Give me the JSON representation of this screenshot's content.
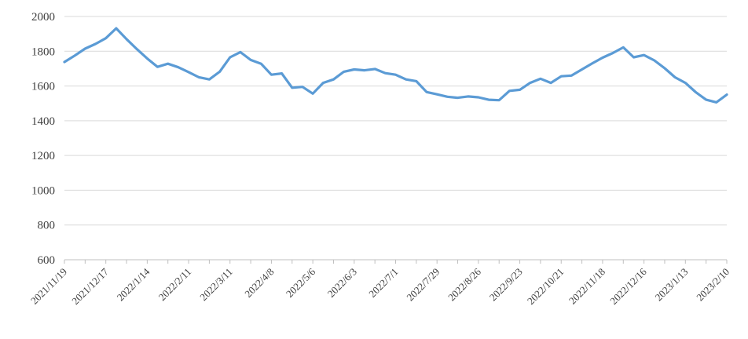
{
  "chart_data": {
    "type": "line",
    "title": "",
    "xlabel": "",
    "ylabel": "",
    "grid": "horizontal",
    "legend_position": "none",
    "ylim": [
      600,
      2000
    ],
    "y_ticks": [
      600,
      800,
      1000,
      1200,
      1400,
      1600,
      1800,
      2000
    ],
    "x_tick_labels": [
      "2021/11/19",
      "2021/12/17",
      "2022/1/14",
      "2022/2/11",
      "2022/3/11",
      "2022/4/8",
      "2022/5/6",
      "2022/6/3",
      "2022/7/1",
      "2022/7/29",
      "2022/8/26",
      "2022/9/23",
      "2022/10/21",
      "2022/11/18",
      "2022/12/16",
      "2023/1/13",
      "2023/2/10"
    ],
    "x_label_every": 4,
    "series": [
      {
        "name": "series-1",
        "color": "#5B9BD5",
        "values": [
          1738,
          1775,
          1815,
          1842,
          1875,
          1932,
          1870,
          1812,
          1758,
          1710,
          1728,
          1708,
          1680,
          1650,
          1638,
          1682,
          1765,
          1795,
          1750,
          1728,
          1665,
          1672,
          1590,
          1595,
          1556,
          1618,
          1638,
          1682,
          1695,
          1690,
          1698,
          1674,
          1665,
          1638,
          1628,
          1565,
          1552,
          1538,
          1532,
          1540,
          1535,
          1521,
          1518,
          1572,
          1578,
          1618,
          1642,
          1618,
          1656,
          1660,
          1695,
          1730,
          1763,
          1790,
          1822,
          1765,
          1778,
          1747,
          1702,
          1650,
          1618,
          1564,
          1521,
          1506,
          1550
        ]
      }
    ],
    "colors": {
      "line": "#5B9BD5",
      "gridline": "#D9D9D9",
      "axis": "#BFBFBF",
      "tick_label": "#3F3F3F"
    }
  }
}
